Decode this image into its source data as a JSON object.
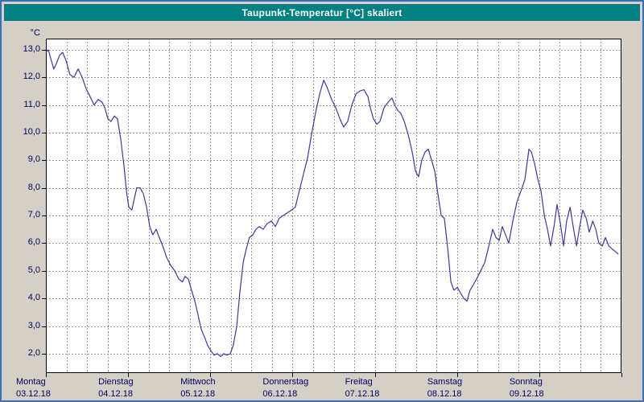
{
  "window": {
    "title": "Taupunkt-Temperatur [°C] skaliert"
  },
  "colors": {
    "titlebar_bg": "#008080",
    "titlebar_text": "#ffffff",
    "window_bg": "#d4d0c8",
    "frame_border": "#3c6eb4",
    "plot_bg": "#ffffff",
    "grid": "#9b9b9b",
    "axis_text": "#000060",
    "line": "#3b3b9e"
  },
  "chart_data": {
    "type": "line",
    "title": "Taupunkt-Temperatur [°C] skaliert",
    "ylabel": "°C",
    "x_unit": "hours since Montag 03.12.18 00:00",
    "xlim": [
      0,
      168
    ],
    "ylim": [
      1.3,
      13.4
    ],
    "grid": true,
    "grid_style": "dashed",
    "x_grid_step_hours": 6,
    "ytick_values": [
      13,
      12,
      11,
      10,
      9,
      8,
      7,
      6,
      5,
      4,
      3,
      2
    ],
    "ytick_labels": [
      "13,0",
      "12,0",
      "11,0",
      "10,0",
      "9,0",
      "8,0",
      "7,0",
      "6,0",
      "5,0",
      "4,0",
      "3,0",
      "2,0"
    ],
    "day_tick_hours": [
      0,
      24,
      48,
      72,
      96,
      120,
      144,
      168
    ],
    "days": [
      {
        "name": "Montag",
        "date": "03.12.18",
        "hour": 0
      },
      {
        "name": "Dienstag",
        "date": "04.12.18",
        "hour": 24
      },
      {
        "name": "Mittwoch",
        "date": "05.12.18",
        "hour": 48
      },
      {
        "name": "Donnerstag",
        "date": "06.12.18",
        "hour": 72
      },
      {
        "name": "Freitag",
        "date": "07.12.18",
        "hour": 96
      },
      {
        "name": "Samstag",
        "date": "08.12.18",
        "hour": 120
      },
      {
        "name": "Sonntag",
        "date": "09.12.18",
        "hour": 144
      }
    ],
    "series_name": "Taupunkt-Temperatur",
    "points": [
      [
        0,
        12.9
      ],
      [
        0.7,
        13.0
      ],
      [
        1.6,
        12.6
      ],
      [
        2.3,
        12.3
      ],
      [
        3.1,
        12.5
      ],
      [
        4.0,
        12.8
      ],
      [
        4.9,
        12.9
      ],
      [
        5.9,
        12.6
      ],
      [
        7.0,
        12.1
      ],
      [
        8.2,
        12.0
      ],
      [
        9.4,
        12.3
      ],
      [
        10.6,
        12.0
      ],
      [
        11.7,
        11.6
      ],
      [
        12.9,
        11.3
      ],
      [
        14.1,
        11.0
      ],
      [
        15.3,
        11.2
      ],
      [
        16.4,
        11.1
      ],
      [
        17.2,
        10.9
      ],
      [
        18.1,
        10.5
      ],
      [
        19.0,
        10.4
      ],
      [
        20.0,
        10.6
      ],
      [
        20.9,
        10.5
      ],
      [
        21.8,
        9.8
      ],
      [
        22.8,
        8.8
      ],
      [
        23.5,
        7.9
      ],
      [
        24.2,
        7.3
      ],
      [
        25.1,
        7.2
      ],
      [
        25.8,
        7.6
      ],
      [
        26.5,
        8.0
      ],
      [
        27.5,
        8.0
      ],
      [
        28.4,
        7.8
      ],
      [
        29.4,
        7.3
      ],
      [
        30.3,
        6.6
      ],
      [
        31.2,
        6.3
      ],
      [
        32.2,
        6.5
      ],
      [
        33.1,
        6.2
      ],
      [
        34.1,
        5.9
      ],
      [
        35.2,
        5.5
      ],
      [
        36.4,
        5.2
      ],
      [
        37.6,
        5.0
      ],
      [
        38.8,
        4.7
      ],
      [
        39.9,
        4.6
      ],
      [
        40.6,
        4.8
      ],
      [
        41.6,
        4.7
      ],
      [
        42.5,
        4.3
      ],
      [
        43.5,
        3.9
      ],
      [
        44.4,
        3.4
      ],
      [
        45.3,
        2.9
      ],
      [
        46.3,
        2.6
      ],
      [
        47.2,
        2.3
      ],
      [
        48.2,
        2.1
      ],
      [
        49.1,
        1.95
      ],
      [
        50.0,
        2.0
      ],
      [
        51.0,
        1.9
      ],
      [
        51.9,
        2.0
      ],
      [
        52.9,
        1.95
      ],
      [
        53.8,
        2.0
      ],
      [
        54.7,
        2.3
      ],
      [
        55.7,
        3.0
      ],
      [
        56.6,
        4.2
      ],
      [
        57.6,
        5.3
      ],
      [
        58.5,
        5.8
      ],
      [
        59.4,
        6.2
      ],
      [
        60.4,
        6.3
      ],
      [
        61.3,
        6.5
      ],
      [
        62.3,
        6.6
      ],
      [
        63.4,
        6.5
      ],
      [
        64.6,
        6.7
      ],
      [
        65.8,
        6.8
      ],
      [
        67.0,
        6.6
      ],
      [
        68.1,
        6.9
      ],
      [
        69.3,
        7.0
      ],
      [
        70.5,
        7.1
      ],
      [
        71.7,
        7.2
      ],
      [
        72.8,
        7.3
      ],
      [
        74.0,
        7.9
      ],
      [
        75.2,
        8.5
      ],
      [
        76.4,
        9.1
      ],
      [
        77.5,
        9.9
      ],
      [
        78.7,
        10.7
      ],
      [
        79.9,
        11.4
      ],
      [
        81.1,
        11.9
      ],
      [
        82.2,
        11.6
      ],
      [
        83.4,
        11.2
      ],
      [
        84.6,
        10.9
      ],
      [
        85.8,
        10.5
      ],
      [
        86.9,
        10.2
      ],
      [
        88.1,
        10.4
      ],
      [
        89.3,
        11.0
      ],
      [
        90.5,
        11.4
      ],
      [
        91.6,
        11.5
      ],
      [
        92.8,
        11.55
      ],
      [
        94.0,
        11.3
      ],
      [
        94.7,
        10.9
      ],
      [
        95.6,
        10.5
      ],
      [
        96.6,
        10.3
      ],
      [
        97.5,
        10.4
      ],
      [
        98.7,
        10.9
      ],
      [
        99.9,
        11.1
      ],
      [
        101.0,
        11.25
      ],
      [
        101.8,
        11.0
      ],
      [
        102.7,
        10.8
      ],
      [
        103.6,
        10.7
      ],
      [
        104.6,
        10.4
      ],
      [
        105.8,
        9.9
      ],
      [
        106.9,
        9.3
      ],
      [
        107.9,
        8.6
      ],
      [
        108.8,
        8.4
      ],
      [
        109.7,
        9.0
      ],
      [
        110.7,
        9.3
      ],
      [
        111.6,
        9.4
      ],
      [
        112.6,
        9.0
      ],
      [
        113.5,
        8.6
      ],
      [
        114.4,
        7.8
      ],
      [
        115.4,
        7.0
      ],
      [
        116.3,
        6.9
      ],
      [
        117.3,
        5.8
      ],
      [
        118.2,
        4.6
      ],
      [
        119.1,
        4.3
      ],
      [
        120.1,
        4.4
      ],
      [
        121.0,
        4.2
      ],
      [
        122.0,
        4.0
      ],
      [
        122.9,
        3.9
      ],
      [
        123.8,
        4.3
      ],
      [
        124.8,
        4.5
      ],
      [
        125.7,
        4.7
      ],
      [
        126.9,
        5.0
      ],
      [
        128.1,
        5.3
      ],
      [
        129.3,
        5.9
      ],
      [
        130.4,
        6.5
      ],
      [
        131.4,
        6.2
      ],
      [
        132.3,
        6.1
      ],
      [
        133.2,
        6.6
      ],
      [
        134.2,
        6.3
      ],
      [
        135.1,
        6.0
      ],
      [
        136.3,
        6.8
      ],
      [
        137.5,
        7.5
      ],
      [
        138.7,
        7.9
      ],
      [
        139.8,
        8.3
      ],
      [
        141.0,
        9.4
      ],
      [
        141.7,
        9.3
      ],
      [
        142.6,
        8.9
      ],
      [
        143.6,
        8.3
      ],
      [
        144.5,
        7.9
      ],
      [
        145.5,
        7.0
      ],
      [
        146.4,
        6.5
      ],
      [
        147.3,
        5.9
      ],
      [
        148.3,
        6.6
      ],
      [
        149.2,
        7.4
      ],
      [
        150.2,
        6.7
      ],
      [
        151.1,
        5.9
      ],
      [
        152.0,
        6.8
      ],
      [
        153.0,
        7.3
      ],
      [
        153.9,
        6.6
      ],
      [
        154.9,
        5.9
      ],
      [
        155.8,
        6.6
      ],
      [
        156.7,
        7.2
      ],
      [
        157.7,
        6.9
      ],
      [
        158.6,
        6.4
      ],
      [
        159.6,
        6.8
      ],
      [
        160.5,
        6.5
      ],
      [
        161.4,
        6.0
      ],
      [
        162.4,
        5.9
      ],
      [
        163.3,
        6.2
      ],
      [
        164.3,
        5.9
      ],
      [
        165.2,
        5.8
      ],
      [
        166.2,
        5.7
      ],
      [
        167.1,
        5.6
      ]
    ]
  }
}
